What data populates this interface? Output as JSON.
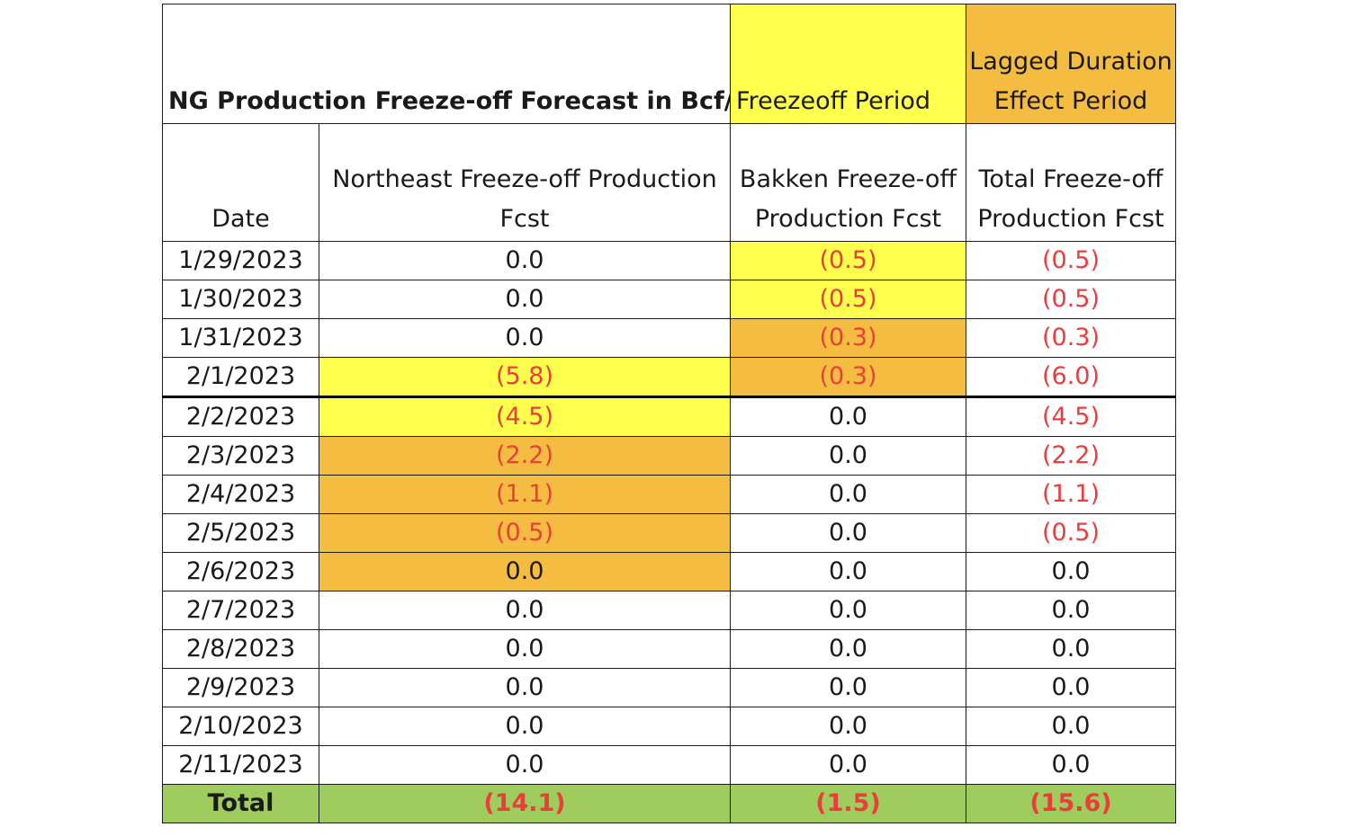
{
  "chart_data": {
    "type": "table",
    "title": "NG Production Freeze-off Forecast in Bcf/d",
    "legend": [
      {
        "label": "Freezeoff Period",
        "color": "#ffff4d"
      },
      {
        "label": "Lagged Duration Effect Period",
        "color": "#f5bc42"
      }
    ],
    "columns": [
      "Date",
      "Northeast Freeze-off Production Fcst",
      "Bakken Freeze-off Production Fcst",
      "Total Freeze-off Production Fcst"
    ],
    "rows": [
      {
        "date": "1/29/2023",
        "northeast": "0.0",
        "bakken": "(0.5)",
        "total": "(0.5)",
        "northeast_value": 0.0,
        "bakken_value": -0.5,
        "total_value": -0.5,
        "northeast_period": "none",
        "bakken_period": "freezeoff"
      },
      {
        "date": "1/30/2023",
        "northeast": "0.0",
        "bakken": "(0.5)",
        "total": "(0.5)",
        "northeast_value": 0.0,
        "bakken_value": -0.5,
        "total_value": -0.5,
        "northeast_period": "none",
        "bakken_period": "freezeoff"
      },
      {
        "date": "1/31/2023",
        "northeast": "0.0",
        "bakken": "(0.3)",
        "total": "(0.3)",
        "northeast_value": 0.0,
        "bakken_value": -0.3,
        "total_value": -0.3,
        "northeast_period": "none",
        "bakken_period": "lagged"
      },
      {
        "date": "2/1/2023",
        "northeast": "(5.8)",
        "bakken": "(0.3)",
        "total": "(6.0)",
        "northeast_value": -5.8,
        "bakken_value": -0.3,
        "total_value": -6.0,
        "northeast_period": "freezeoff",
        "bakken_period": "lagged"
      },
      {
        "date": "2/2/2023",
        "northeast": "(4.5)",
        "bakken": "0.0",
        "total": "(4.5)",
        "northeast_value": -4.5,
        "bakken_value": 0.0,
        "total_value": -4.5,
        "northeast_period": "freezeoff",
        "bakken_period": "none"
      },
      {
        "date": "2/3/2023",
        "northeast": "(2.2)",
        "bakken": "0.0",
        "total": "(2.2)",
        "northeast_value": -2.2,
        "bakken_value": 0.0,
        "total_value": -2.2,
        "northeast_period": "lagged",
        "bakken_period": "none"
      },
      {
        "date": "2/4/2023",
        "northeast": "(1.1)",
        "bakken": "0.0",
        "total": "(1.1)",
        "northeast_value": -1.1,
        "bakken_value": 0.0,
        "total_value": -1.1,
        "northeast_period": "lagged",
        "bakken_period": "none"
      },
      {
        "date": "2/5/2023",
        "northeast": "(0.5)",
        "bakken": "0.0",
        "total": "(0.5)",
        "northeast_value": -0.5,
        "bakken_value": 0.0,
        "total_value": -0.5,
        "northeast_period": "lagged",
        "bakken_period": "none"
      },
      {
        "date": "2/6/2023",
        "northeast": "0.0",
        "bakken": "0.0",
        "total": "0.0",
        "northeast_value": 0.0,
        "bakken_value": 0.0,
        "total_value": 0.0,
        "northeast_period": "lagged",
        "bakken_period": "none"
      },
      {
        "date": "2/7/2023",
        "northeast": "0.0",
        "bakken": "0.0",
        "total": "0.0",
        "northeast_value": 0.0,
        "bakken_value": 0.0,
        "total_value": 0.0,
        "northeast_period": "none",
        "bakken_period": "none"
      },
      {
        "date": "2/8/2023",
        "northeast": "0.0",
        "bakken": "0.0",
        "total": "0.0",
        "northeast_value": 0.0,
        "bakken_value": 0.0,
        "total_value": 0.0,
        "northeast_period": "none",
        "bakken_period": "none"
      },
      {
        "date": "2/9/2023",
        "northeast": "0.0",
        "bakken": "0.0",
        "total": "0.0",
        "northeast_value": 0.0,
        "bakken_value": 0.0,
        "total_value": 0.0,
        "northeast_period": "none",
        "bakken_period": "none"
      },
      {
        "date": "2/10/2023",
        "northeast": "0.0",
        "bakken": "0.0",
        "total": "0.0",
        "northeast_value": 0.0,
        "bakken_value": 0.0,
        "total_value": 0.0,
        "northeast_period": "none",
        "bakken_period": "none"
      },
      {
        "date": "2/11/2023",
        "northeast": "0.0",
        "bakken": "0.0",
        "total": "0.0",
        "northeast_value": 0.0,
        "bakken_value": 0.0,
        "total_value": 0.0,
        "northeast_period": "none",
        "bakken_period": "none"
      }
    ],
    "totals": {
      "label": "Total",
      "northeast": "(14.1)",
      "bakken": "(1.5)",
      "total": "(15.6)",
      "northeast_value": -14.1,
      "bakken_value": -1.5,
      "total_value": -15.6
    },
    "separator_after_date": "2/1/2023"
  },
  "colors": {
    "freezeoff": "#ffff4d",
    "lagged": "#f5bc42",
    "total_row": "#9fcd5d",
    "negative_text": "#ec3d3d",
    "text": "#1a1a1a"
  }
}
